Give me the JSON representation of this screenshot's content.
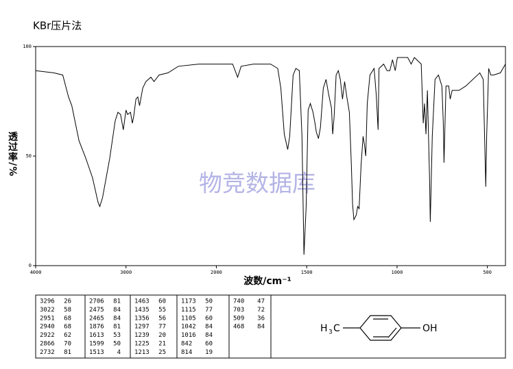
{
  "chart_data": {
    "type": "line",
    "title": "KBr压片法",
    "xlabel": "波数/cm⁻¹",
    "ylabel": "透过率/%",
    "watermark": "物竞数据库",
    "xlim": [
      4000,
      400
    ],
    "xticks": [
      4000,
      3000,
      2000,
      1500,
      1000,
      500
    ],
    "ylim": [
      0,
      100
    ],
    "yticks": [
      0,
      50,
      100
    ],
    "color": "#000000",
    "x": [
      4000,
      3800,
      3700,
      3636,
      3600,
      3520,
      3445,
      3370,
      3310,
      3290,
      3260,
      3180,
      3120,
      3090,
      3060,
      3030,
      3000,
      2983,
      2950,
      2930,
      2915,
      2890,
      2870,
      2850,
      2815,
      2780,
      2725,
      2690,
      2635,
      2535,
      2420,
      2195,
      1985,
      1910,
      1882,
      1863,
      1795,
      1700,
      1660,
      1643,
      1624,
      1605,
      1594,
      1575,
      1560,
      1541,
      1526,
      1515,
      1503,
      1492,
      1480,
      1465,
      1454,
      1447,
      1435,
      1424,
      1408,
      1393,
      1378,
      1363,
      1356,
      1348,
      1337,
      1325,
      1314,
      1302,
      1290,
      1280,
      1264,
      1253,
      1246,
      1239,
      1226,
      1218,
      1210,
      1199,
      1188,
      1180,
      1173,
      1165,
      1150,
      1127,
      1115,
      1105,
      1100,
      1074,
      1055,
      1040,
      1025,
      1010,
      998,
      941,
      922,
      904,
      866,
      855,
      848,
      840,
      832,
      820,
      816,
      805,
      790,
      771,
      752,
      744,
      740,
      729,
      714,
      706,
      695,
      657,
      619,
      542,
      523,
      509,
      504,
      493,
      481,
      466,
      428,
      400
    ],
    "values": [
      89,
      88,
      87,
      77,
      73,
      57,
      49,
      40,
      29,
      27,
      31,
      49,
      66,
      70,
      69,
      62,
      71,
      69,
      70,
      65,
      68,
      76,
      77,
      73,
      81,
      84,
      86,
      84,
      87,
      88,
      91,
      92,
      92,
      92,
      86,
      91,
      92,
      92,
      90,
      81,
      60,
      53,
      59,
      87,
      90,
      89,
      59,
      5,
      27,
      71,
      74,
      70,
      65,
      61,
      58,
      63,
      81,
      85,
      78,
      72,
      60,
      68,
      87,
      89,
      85,
      76,
      84,
      78,
      70,
      46,
      28,
      21,
      23,
      27,
      26,
      46,
      59,
      55,
      50,
      74,
      87,
      90,
      78,
      62,
      90,
      92,
      89,
      89,
      94,
      89,
      95,
      95,
      92,
      95,
      92,
      65,
      74,
      60,
      80,
      40,
      20,
      59,
      85,
      87,
      82,
      65,
      47,
      82,
      82,
      76,
      80,
      80,
      82,
      88,
      85,
      36,
      59,
      90,
      87,
      87,
      88,
      92
    ]
  },
  "peak_table": [
    [
      [
        3296,
        26
      ],
      [
        3022,
        58
      ],
      [
        2951,
        68
      ],
      [
        2940,
        68
      ],
      [
        2922,
        62
      ],
      [
        2866,
        70
      ],
      [
        2732,
        81
      ]
    ],
    [
      [
        2706,
        81
      ],
      [
        2475,
        84
      ],
      [
        2465,
        84
      ],
      [
        1876,
        81
      ],
      [
        1613,
        53
      ],
      [
        1599,
        50
      ],
      [
        1513,
        4
      ]
    ],
    [
      [
        1463,
        60
      ],
      [
        1435,
        55
      ],
      [
        1356,
        56
      ],
      [
        1297,
        77
      ],
      [
        1239,
        20
      ],
      [
        1225,
        21
      ],
      [
        1213,
        25
      ]
    ],
    [
      [
        1173,
        50
      ],
      [
        1115,
        77
      ],
      [
        1105,
        60
      ],
      [
        1042,
        84
      ],
      [
        1016,
        84
      ],
      [
        842,
        60
      ],
      [
        814,
        19
      ]
    ],
    [
      [
        740,
        47
      ],
      [
        703,
        72
      ],
      [
        509,
        36
      ],
      [
        468,
        84
      ]
    ]
  ],
  "structure": {
    "methyl_h": "H",
    "methyl_sub": "3",
    "methyl_c": "C",
    "hydroxyl": "OH"
  }
}
